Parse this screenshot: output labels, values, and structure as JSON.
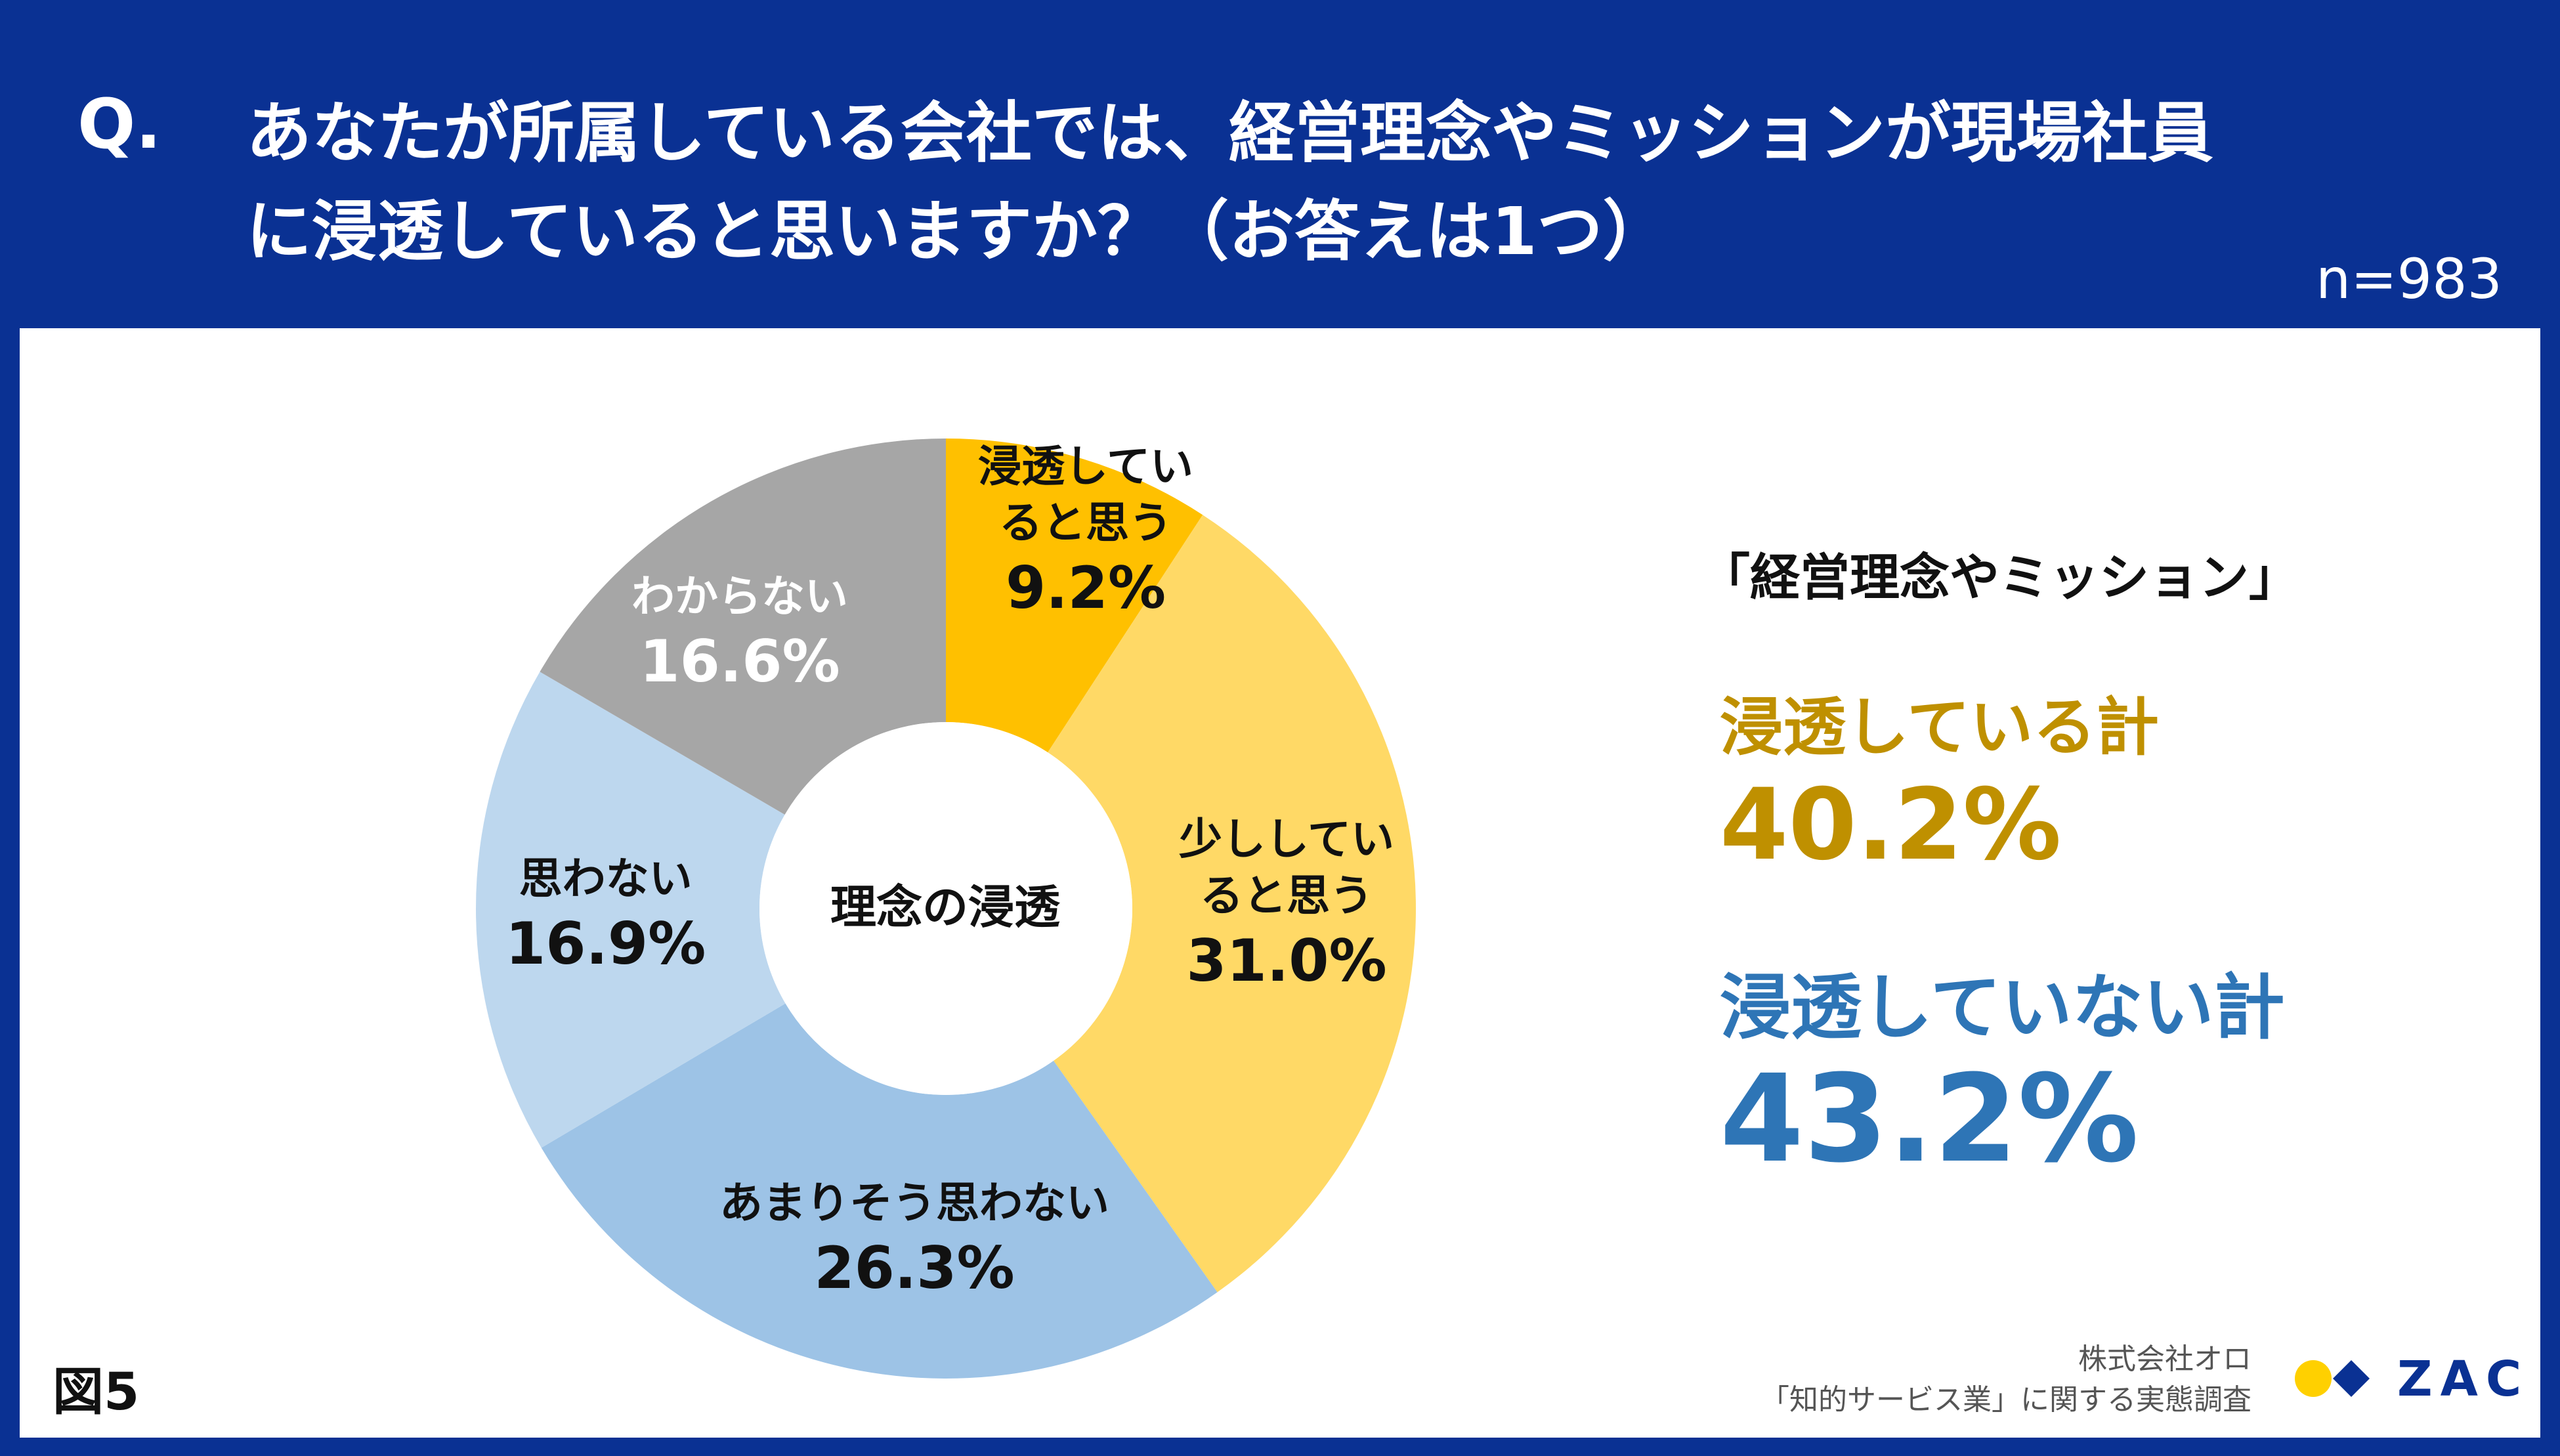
{
  "header": {
    "q_label": "Q.",
    "question_line1": "あなたが所属している会社では、経営理念やミッションが現場社員",
    "question_line2": "に浸透していると思いますか？（お答えは1つ）",
    "sample_size": "n=983"
  },
  "chart_data": {
    "type": "pie",
    "variant": "donut",
    "title": "理念の浸透",
    "categories": [
      "浸透していると思う",
      "少ししていると思う",
      "あまりそう思わない",
      "思わない",
      "わからない"
    ],
    "values": [
      9.2,
      31.0,
      26.3,
      16.9,
      16.6
    ],
    "colors": [
      "#ffc000",
      "#ffd966",
      "#9dc3e6",
      "#bdd7ee",
      "#a6a6a6"
    ],
    "labels": [
      {
        "name_line1": "浸透してい",
        "name_line2": "ると思う",
        "value": "9.2%"
      },
      {
        "name_line1": "少ししてい",
        "name_line2": "ると思う",
        "value": "31.0%"
      },
      {
        "name_line1": "あまりそう思わない",
        "value": "26.3%"
      },
      {
        "name_line1": "思わない",
        "value": "16.9%"
      },
      {
        "name_line1": "わからない",
        "value": "16.6%"
      }
    ]
  },
  "summary": {
    "title": "「経営理念やミッション」",
    "positive_label": "浸透している計",
    "positive_value": "40.2%",
    "positive_color": "#bf9000",
    "negative_label": "浸透していない計",
    "negative_value": "43.2%",
    "negative_color": "#2e75b6"
  },
  "footer": {
    "figure_label": "図5",
    "credit_line1": "株式会社オロ",
    "credit_line2": "「知的サービス業」に関する実態調査",
    "logo_text": "ZAC",
    "logo_dot_colors": [
      "#ffd000",
      "#0a3193"
    ]
  }
}
